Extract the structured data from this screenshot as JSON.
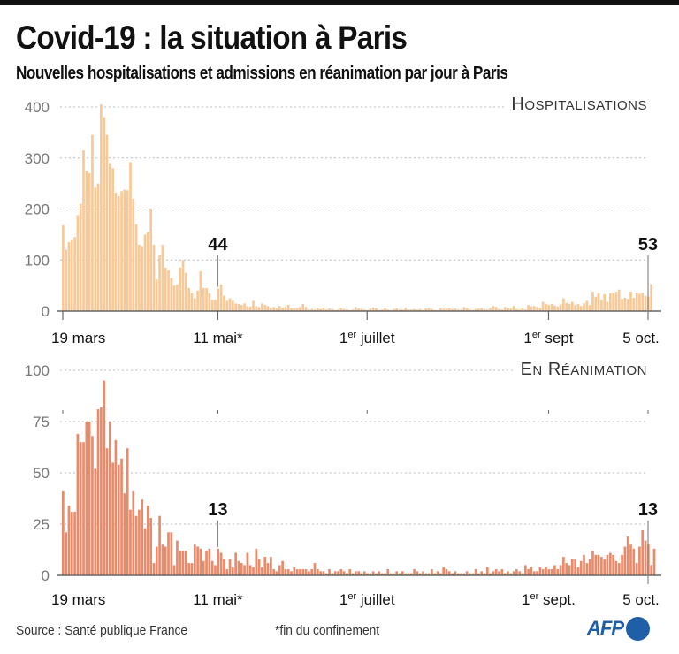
{
  "header": {
    "title": "Covid-19 : la situation à Paris",
    "subtitle": "Nouvelles hospitalisations et admissions en réanimation par jour à Paris"
  },
  "footer": {
    "source": "Source : Santé publique France",
    "note": "*fin du confinement",
    "logo": "AFP"
  },
  "colors": {
    "hospitalisations": "#f8c996",
    "reanimation": "#e98b6a",
    "axis": "#666666",
    "grid": "#bbbbbb",
    "logo": "#1f5fa8"
  },
  "chart_data": [
    {
      "type": "bar",
      "title": "Hospitalisations",
      "xlabel": "",
      "ylabel": "",
      "ylim": [
        0,
        400
      ],
      "yticks": [
        0,
        100,
        200,
        300,
        400
      ],
      "grid": true,
      "x_start": "19 mars",
      "x_end": "5 oct.",
      "xtick_labels": [
        {
          "day": 0,
          "label": "19 mars"
        },
        {
          "day": 53,
          "label": "11 mai*"
        },
        {
          "day": 104,
          "label": "1er juillet"
        },
        {
          "day": 166,
          "label": "1er sept"
        },
        {
          "day": 200,
          "label": "5 oct."
        }
      ],
      "annotations": [
        {
          "day": 53,
          "label": "44"
        },
        {
          "day": 200,
          "label": "53"
        }
      ],
      "values": [
        168,
        120,
        135,
        140,
        145,
        188,
        210,
        315,
        275,
        270,
        345,
        242,
        250,
        405,
        380,
        345,
        290,
        280,
        232,
        225,
        235,
        238,
        237,
        292,
        220,
        170,
        130,
        127,
        150,
        155,
        200,
        130,
        62,
        110,
        130,
        85,
        80,
        65,
        50,
        52,
        85,
        100,
        75,
        45,
        35,
        25,
        40,
        78,
        45,
        45,
        35,
        22,
        22,
        44,
        52,
        30,
        20,
        25,
        20,
        15,
        14,
        12,
        15,
        10,
        9,
        20,
        10,
        8,
        15,
        12,
        10,
        6,
        8,
        6,
        10,
        7,
        8,
        12,
        5,
        5,
        6,
        8,
        14,
        8,
        3,
        4,
        3,
        6,
        4,
        7,
        3,
        5,
        4,
        2,
        3,
        6,
        4,
        3,
        2,
        3,
        8,
        5,
        4,
        3,
        2,
        5,
        7,
        6,
        2,
        3,
        6,
        3,
        2,
        4,
        5,
        3,
        3,
        7,
        3,
        3,
        4,
        3,
        4,
        2,
        5,
        6,
        4,
        2,
        2,
        5,
        4,
        5,
        6,
        4,
        5,
        3,
        3,
        8,
        6,
        3,
        2,
        4,
        5,
        6,
        4,
        3,
        6,
        10,
        8,
        4,
        3,
        8,
        6,
        5,
        10,
        4,
        3,
        6,
        3,
        12,
        9,
        10,
        8,
        6,
        18,
        14,
        12,
        14,
        11,
        9,
        13,
        25,
        16,
        14,
        18,
        12,
        14,
        10,
        15,
        20,
        12,
        38,
        28,
        35,
        22,
        33,
        18,
        35,
        35,
        38,
        42,
        24,
        26,
        24,
        38,
        26,
        36,
        34,
        36,
        30,
        28,
        53
      ]
    },
    {
      "type": "bar",
      "title": "En réanimation",
      "xlabel": "",
      "ylabel": "",
      "ylim": [
        0,
        100
      ],
      "yticks": [
        0,
        25,
        50,
        75,
        100
      ],
      "grid": true,
      "x_start": "19 mars",
      "x_end": "5 oct.",
      "xtick_labels": [
        {
          "day": 0,
          "label": "19 mars"
        },
        {
          "day": 53,
          "label": "11 mai*"
        },
        {
          "day": 104,
          "label": "1er juillet"
        },
        {
          "day": 166,
          "label": "1er sept."
        },
        {
          "day": 200,
          "label": "5 oct."
        }
      ],
      "annotations": [
        {
          "day": 53,
          "label": "13"
        },
        {
          "day": 200,
          "label": "13"
        }
      ],
      "values": [
        41,
        21,
        34,
        31,
        31,
        69,
        65,
        65,
        75,
        75,
        68,
        52,
        81,
        82,
        95,
        62,
        75,
        55,
        66,
        54,
        57,
        40,
        62,
        32,
        41,
        29,
        32,
        37,
        23,
        34,
        28,
        6,
        14,
        29,
        15,
        14,
        21,
        21,
        5,
        17,
        12,
        12,
        12,
        6,
        6,
        15,
        14,
        13,
        7,
        12,
        13,
        7,
        5,
        13,
        11,
        8,
        3,
        8,
        4,
        11,
        7,
        6,
        5,
        11,
        5,
        4,
        13,
        8,
        4,
        9,
        6,
        9,
        3,
        2,
        5,
        7,
        3,
        3,
        2,
        4,
        3,
        3,
        3,
        3,
        2,
        3,
        6,
        3,
        2,
        2,
        1,
        3,
        1,
        2,
        2,
        3,
        2,
        1,
        3,
        1,
        2,
        2,
        1,
        2,
        1,
        1,
        2,
        1,
        2,
        1,
        1,
        3,
        1,
        1,
        2,
        1,
        2,
        1,
        1,
        1,
        3,
        2,
        1,
        2,
        1,
        1,
        3,
        1,
        2,
        1,
        4,
        3,
        2,
        1,
        2,
        1,
        1,
        1,
        2,
        1,
        1,
        3,
        1,
        2,
        1,
        4,
        1,
        2,
        3,
        2,
        3,
        1,
        2,
        1,
        2,
        3,
        2,
        1,
        5,
        3,
        4,
        2,
        2,
        4,
        3,
        4,
        3,
        3,
        5,
        3,
        5,
        9,
        6,
        5,
        8,
        8,
        4,
        7,
        10,
        6,
        8,
        12,
        10,
        10,
        9,
        8,
        10,
        11,
        10,
        7,
        6,
        10,
        14,
        19,
        15,
        13,
        6,
        14,
        22,
        17,
        15,
        5,
        13
      ]
    }
  ]
}
